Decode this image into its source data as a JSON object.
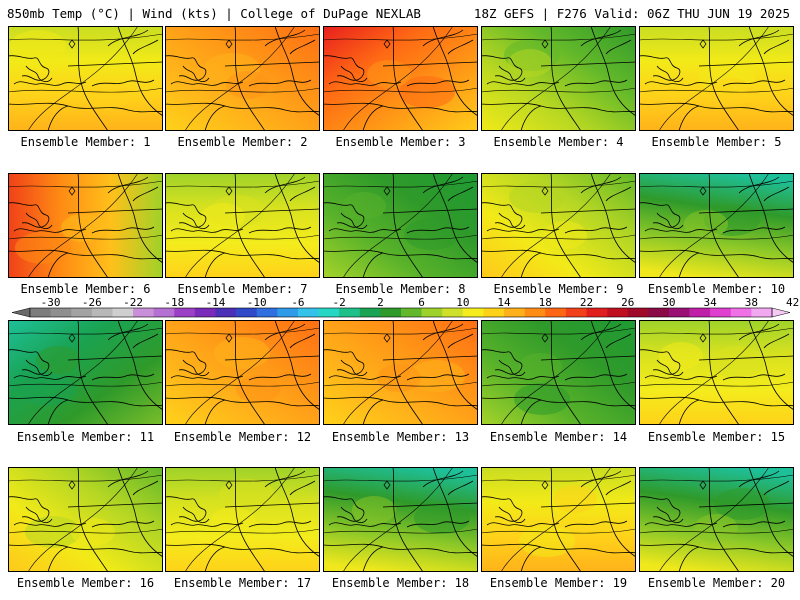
{
  "header": {
    "left": "850mb Temp (°C) | Wind (kts) | College of DuPage NEXLAB",
    "right": "18Z GEFS | F276 Valid: 06Z THU JUN 19 2025"
  },
  "caption_prefix": "Ensemble Member:",
  "members": [
    {
      "label": "Ensemble Member: 1",
      "field": "warm-yellow"
    },
    {
      "label": "Ensemble Member: 2",
      "field": "orange"
    },
    {
      "label": "Ensemble Member: 3",
      "field": "hot"
    },
    {
      "label": "Ensemble Member: 4",
      "field": "cool-green"
    },
    {
      "label": "Ensemble Member: 5",
      "field": "warm-yellow"
    },
    {
      "label": "Ensemble Member: 6",
      "field": "hot-west"
    },
    {
      "label": "Ensemble Member: 7",
      "field": "yellow"
    },
    {
      "label": "Ensemble Member: 8",
      "field": "green"
    },
    {
      "label": "Ensemble Member: 9",
      "field": "yellow-green"
    },
    {
      "label": "Ensemble Member: 10",
      "field": "cool-north"
    },
    {
      "label": "Ensemble Member: 11",
      "field": "green-teal"
    },
    {
      "label": "Ensemble Member: 12",
      "field": "orange"
    },
    {
      "label": "Ensemble Member: 13",
      "field": "orange"
    },
    {
      "label": "Ensemble Member: 14",
      "field": "green"
    },
    {
      "label": "Ensemble Member: 15",
      "field": "yellow"
    },
    {
      "label": "Ensemble Member: 16",
      "field": "yellow-green"
    },
    {
      "label": "Ensemble Member: 17",
      "field": "yellow"
    },
    {
      "label": "Ensemble Member: 18",
      "field": "cool-north"
    },
    {
      "label": "Ensemble Member: 19",
      "field": "warm-yellow"
    },
    {
      "label": "Ensemble Member: 20",
      "field": "cool-north"
    }
  ],
  "colorbar": {
    "ticks": [
      "-30",
      "-26",
      "-22",
      "-18",
      "-14",
      "-10",
      "-6",
      "-2",
      "2",
      "6",
      "10",
      "14",
      "18",
      "22",
      "26",
      "30",
      "34",
      "38",
      "42"
    ],
    "colors": [
      "#7d7d7d",
      "#8f8f8f",
      "#a3a3a3",
      "#b8b8b8",
      "#cfcfcf",
      "#c98fd8",
      "#b66fd2",
      "#9a3fc6",
      "#7a2ab8",
      "#4a2fb8",
      "#2f49c8",
      "#2f6fe0",
      "#2f9ae8",
      "#33c2ea",
      "#28d7c3",
      "#1ec08a",
      "#1aa352",
      "#2f9a2a",
      "#62b82a",
      "#9ed22a",
      "#cfe02a",
      "#f4ec1c",
      "#ffd21a",
      "#ffb01a",
      "#ff8c14",
      "#ff6614",
      "#f2401a",
      "#e01e1e",
      "#c01020",
      "#a00a2a",
      "#8a0a45",
      "#9a1075",
      "#c020a8",
      "#e040d0",
      "#f070e8",
      "#f2a8f0"
    ]
  }
}
